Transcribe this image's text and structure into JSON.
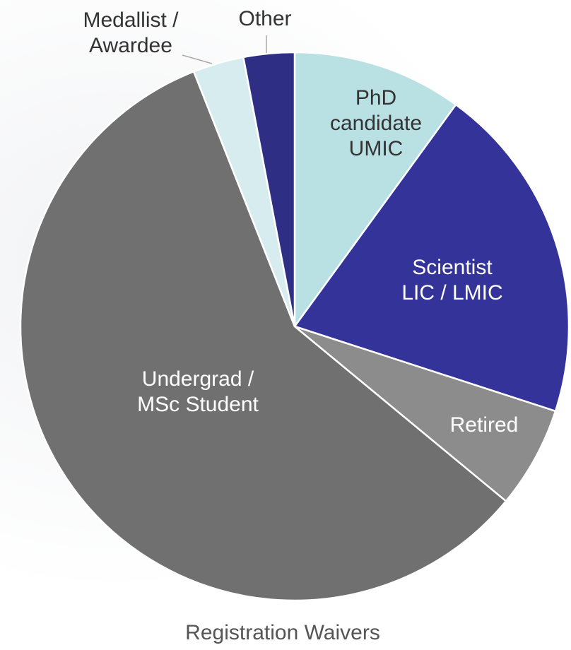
{
  "chart_data": {
    "type": "pie",
    "title": "Registration Waivers",
    "categories": [
      "PhD\ncandidate\nUMIC",
      "Scientist\nLIC / LMIC",
      "Retired",
      "Undergrad /\nMSc Student",
      "Medallist /\nAwardee",
      "Other"
    ],
    "values": [
      10,
      20,
      6,
      58,
      3,
      3
    ],
    "colors": [
      "#b9e0e3",
      "#333399",
      "#8c8c8c",
      "#707070",
      "#d6ecee",
      "#2e2e85"
    ]
  }
}
